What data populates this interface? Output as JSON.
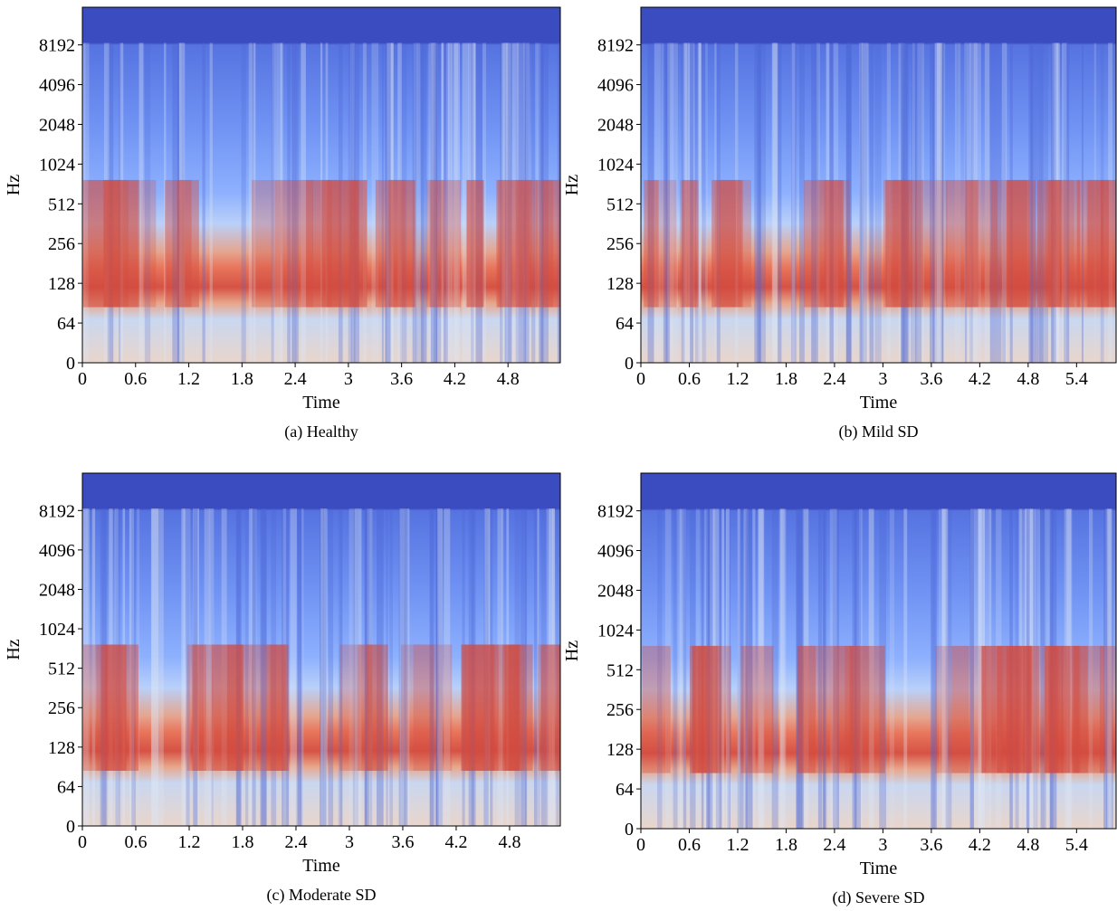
{
  "chart_data": [
    {
      "type": "spectrogram",
      "caption": "(a) Healthy",
      "xlabel": "Time",
      "ylabel": "Hz",
      "xlim": [
        0,
        5.39
      ],
      "xticks": [
        0,
        0.6,
        1.2,
        1.8,
        2.4,
        3,
        3.6,
        4.2,
        4.8
      ],
      "ylim": [
        0,
        15800
      ],
      "yticks": [
        0,
        64,
        128,
        256,
        512,
        1024,
        2048,
        4096,
        8192
      ],
      "yscale": "mel"
    },
    {
      "type": "spectrogram",
      "caption": "(b) Mild SD",
      "xlabel": "Time",
      "ylabel": "Hz",
      "xlim": [
        0,
        5.89
      ],
      "xticks": [
        0,
        0.6,
        1.2,
        1.8,
        2.4,
        3,
        3.6,
        4.2,
        4.8,
        5.4
      ],
      "ylim": [
        0,
        15800
      ],
      "yticks": [
        0,
        64,
        128,
        256,
        512,
        1024,
        2048,
        4096,
        8192
      ],
      "yscale": "mel"
    },
    {
      "type": "spectrogram",
      "caption": "(c) Moderate SD",
      "xlabel": "Time",
      "ylabel": "Hz",
      "xlim": [
        0,
        5.37
      ],
      "xticks": [
        0,
        0.6,
        1.2,
        1.8,
        2.4,
        3,
        3.6,
        4.2,
        4.8
      ],
      "ylim": [
        0,
        15800
      ],
      "yticks": [
        0,
        64,
        128,
        256,
        512,
        1024,
        2048,
        4096,
        8192
      ],
      "yscale": "mel"
    },
    {
      "type": "spectrogram",
      "caption": "(d) Severe SD",
      "xlabel": "Time",
      "ylabel": "Hz",
      "xlim": [
        0,
        5.89
      ],
      "xticks": [
        0,
        0.6,
        1.2,
        1.8,
        2.4,
        3,
        3.6,
        4.2,
        4.8,
        5.4
      ],
      "ylim": [
        0,
        15800
      ],
      "yticks": [
        0,
        64,
        128,
        256,
        512,
        1024,
        2048,
        4096,
        8192
      ],
      "yscale": "mel"
    }
  ]
}
